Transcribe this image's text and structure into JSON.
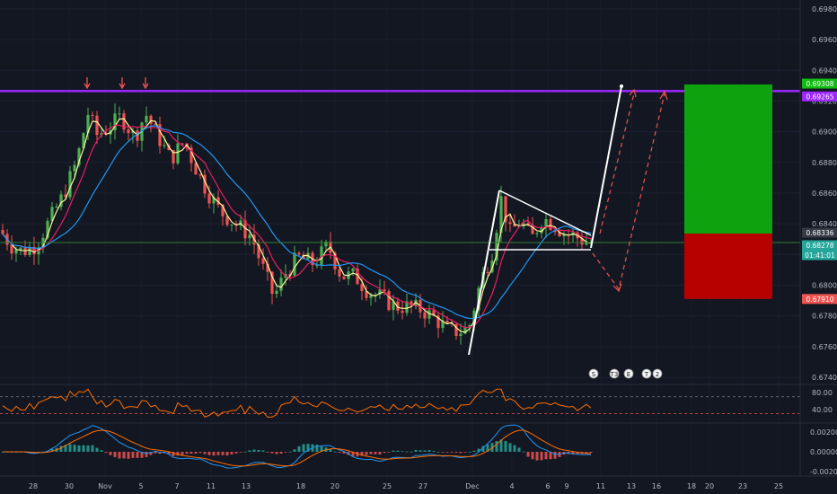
{
  "colors": {
    "background": "#131722",
    "up": "#26a69a",
    "up_bright": "#4caf50",
    "down": "#ef5350",
    "resistance": "#9c27ff",
    "support_line": "#2e7d32",
    "ma_fast": "#fff59d",
    "ma_mid": "#e91e63",
    "ma_slow": "#2196f3",
    "rsi": "#ff6d00",
    "target_zone": "#0ea30e",
    "stop_zone": "#b70000"
  },
  "chart_data": [
    {
      "type": "candlestick",
      "pane": "price",
      "ylim": [
        0.674,
        0.698
      ],
      "y_ticks": [
        "0.69800",
        "0.69600",
        "0.69400",
        "0.69200",
        "0.69000",
        "0.68800",
        "0.68600",
        "0.68400",
        "0.68200",
        "0.68000",
        "0.67800",
        "0.67600",
        "0.67400"
      ],
      "x_ticks": [
        "28",
        "30",
        "Nov",
        "5",
        "7",
        "11",
        "13",
        "18",
        "20",
        "25",
        "27",
        "Dec",
        "4",
        "6",
        "9",
        "11",
        "13",
        "16",
        "18",
        "20",
        "23",
        "25"
      ],
      "price_tags": [
        {
          "label": "0.69308",
          "color": "#11bb11"
        },
        {
          "label": "0.69265",
          "color": "#9c27ff"
        },
        {
          "label": "0.68336",
          "color": "#363a45"
        },
        {
          "label": "0.68278",
          "color": "#26a69a"
        },
        {
          "label": "01:41:01",
          "color": "#26a69a"
        },
        {
          "label": "0.67910",
          "color": "#ef5350"
        }
      ],
      "resistance_level": 0.69265,
      "support_level": 0.68278,
      "target_price": 0.69308,
      "entry_price": 0.68336,
      "stop_price": 0.6791,
      "events": [
        "S",
        "T3",
        "E",
        "T",
        "2"
      ]
    },
    {
      "type": "line",
      "pane": "rsi",
      "name": "RSI",
      "y_ticks": [
        "80.00",
        "40.00"
      ],
      "upper_band": 70,
      "lower_band": 30
    },
    {
      "type": "histogram",
      "pane": "macd",
      "name": "MACD",
      "y_ticks": [
        "0.00200",
        "0.00000",
        "-0.00200"
      ]
    }
  ]
}
